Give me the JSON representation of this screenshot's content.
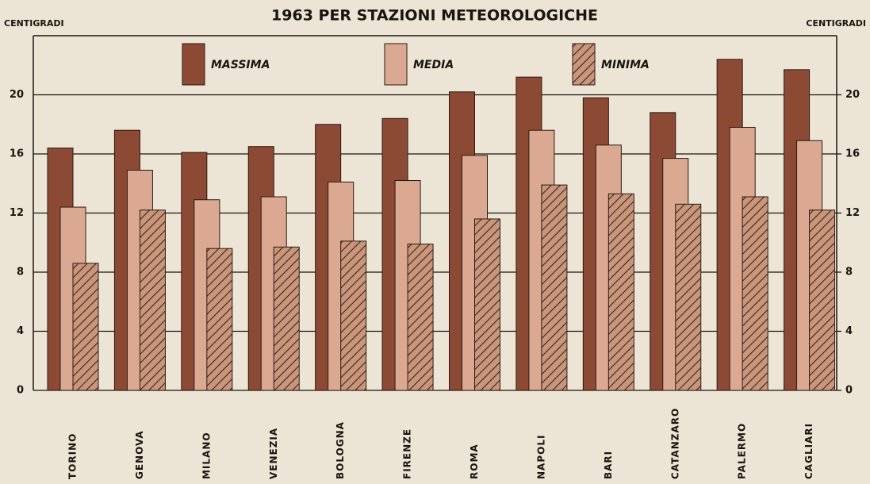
{
  "chart_data": {
    "type": "bar",
    "title": "1963 PER STAZIONI METEOROLOGICHE",
    "ylabel": "CENTIGRADI",
    "y2label": "CENTIGRADI",
    "categories": [
      "TORINO",
      "GENOVA",
      "MILANO",
      "VENEZIA",
      "BOLOGNA",
      "FIRENZE",
      "ROMA",
      "NAPOLI",
      "BARI",
      "CATANZARO",
      "PALERMO",
      "CAGLIARI"
    ],
    "series": [
      {
        "name": "MASSIMA",
        "color": "#8c4a35",
        "values": [
          16.4,
          17.6,
          16.1,
          16.5,
          18.0,
          18.4,
          20.2,
          21.2,
          19.8,
          18.8,
          22.4,
          21.7
        ]
      },
      {
        "name": "MEDIA",
        "color": "#dba891",
        "values": [
          12.4,
          14.9,
          12.9,
          13.1,
          14.1,
          14.2,
          15.9,
          17.6,
          16.6,
          15.7,
          17.8,
          16.9
        ]
      },
      {
        "name": "MINIMA",
        "color": "#c9967c",
        "hatch": true,
        "values": [
          8.6,
          12.2,
          9.6,
          9.7,
          10.1,
          9.9,
          11.6,
          13.9,
          13.3,
          12.6,
          13.1,
          12.2
        ]
      }
    ],
    "ylim": [
      0,
      24
    ],
    "yticks": [
      0,
      4,
      8,
      12,
      16,
      20
    ],
    "y2lim": [
      0,
      24
    ],
    "y2ticks": [
      0,
      4,
      8,
      12,
      16,
      20
    ],
    "grid": true,
    "legend": "top"
  }
}
